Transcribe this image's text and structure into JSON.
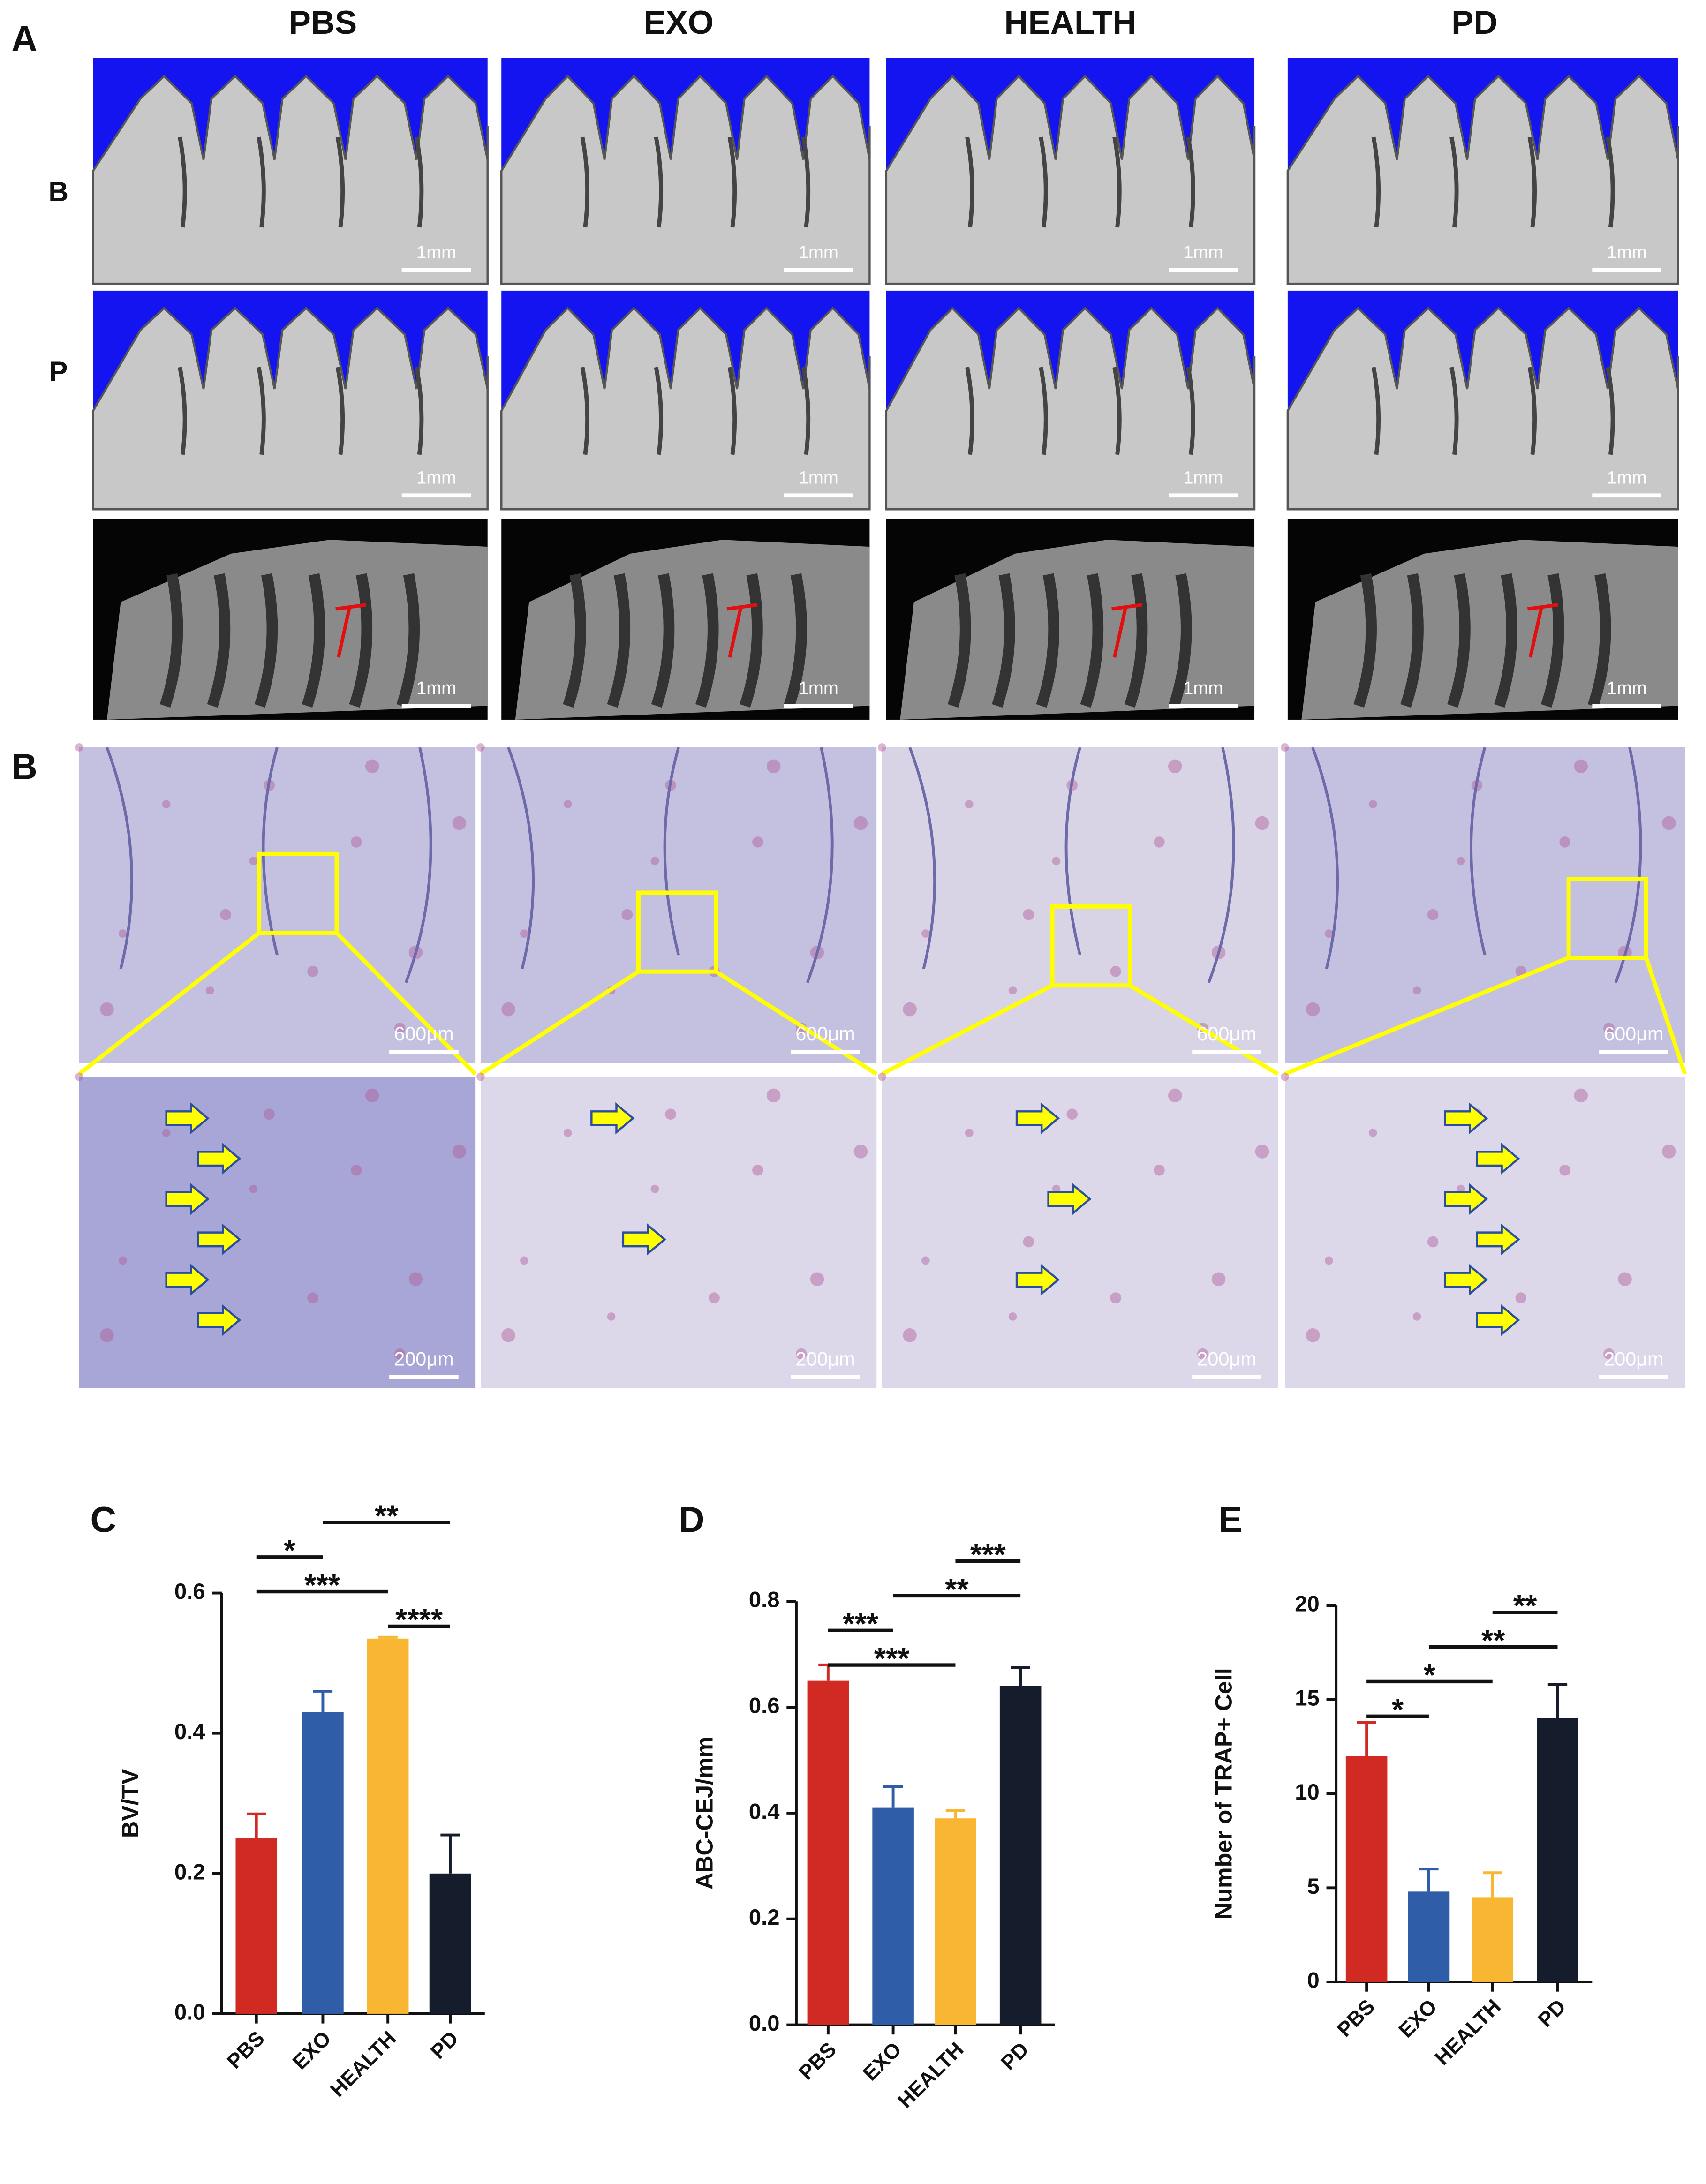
{
  "figure": {
    "panel_a": {
      "label": "A",
      "columns": [
        "PBS",
        "EXO",
        "HEALTH",
        "PD"
      ],
      "row_labels": [
        "B",
        "P"
      ],
      "scale_bars": [
        [
          "1mm",
          "1mm",
          "1mm",
          "1mm"
        ],
        [
          "1mm",
          "1mm",
          "1mm",
          "1mm"
        ],
        [
          "1mm",
          "1mm",
          "1mm",
          "1mm"
        ]
      ]
    },
    "panel_b": {
      "label": "B",
      "scale_bars": [
        [
          "600μm",
          "600μm",
          "600μm",
          "600μm"
        ],
        [
          "200μm",
          "200μm",
          "200μm",
          "200μm"
        ]
      ]
    }
  },
  "chart_data": [
    {
      "type": "bar",
      "panel_label": "C",
      "y_label": "BV/TV",
      "categories": [
        "PBS",
        "EXO",
        "HEALTH",
        "PD"
      ],
      "values": [
        0.25,
        0.43,
        0.535,
        0.2
      ],
      "errors": [
        0.035,
        0.03,
        0.002,
        0.055
      ],
      "colors": [
        "#d12a22",
        "#2f5da8",
        "#f8b632",
        "#151c2b"
      ],
      "ylim": [
        0,
        0.6
      ],
      "yticks": [
        {
          "value": 0,
          "label": "0.0"
        },
        0.2,
        0.4,
        0.6
      ],
      "comparisons": [
        {
          "between": [
            1,
            3
          ],
          "label": "**"
        },
        {
          "between": [
            0,
            1
          ],
          "label": "*"
        },
        {
          "between": [
            0,
            2
          ],
          "label": "***"
        },
        {
          "between": [
            2,
            3
          ],
          "label": "****"
        }
      ]
    },
    {
      "type": "bar",
      "panel_label": "D",
      "y_label": "ABC-CEJ/mm",
      "categories": [
        "PBS",
        "EXO",
        "HEALTH",
        "PD"
      ],
      "values": [
        0.65,
        0.41,
        0.39,
        0.64
      ],
      "errors": [
        0.03,
        0.04,
        0.015,
        0.035
      ],
      "colors": [
        "#d12a22",
        "#2f5da8",
        "#f8b632",
        "#151c2b"
      ],
      "ylim": [
        0,
        0.8
      ],
      "yticks": [
        {
          "value": 0,
          "label": "0.0"
        },
        0.2,
        0.4,
        0.6,
        0.8
      ],
      "comparisons": [
        {
          "between": [
            2,
            3
          ],
          "label": "***"
        },
        {
          "between": [
            1,
            3
          ],
          "label": "**"
        },
        {
          "between": [
            0,
            1
          ],
          "label": "***"
        },
        {
          "between": [
            0,
            2
          ],
          "label": "***"
        }
      ]
    },
    {
      "type": "bar",
      "panel_label": "E",
      "y_label": "Number of TRAP+ Cell",
      "categories": [
        "PBS",
        "EXO",
        "HEALTH",
        "PD"
      ],
      "values": [
        12,
        4.8,
        4.5,
        14
      ],
      "errors": [
        1.8,
        1.2,
        1.3,
        1.8
      ],
      "colors": [
        "#d12a22",
        "#2f5da8",
        "#f8b632",
        "#151c2b"
      ],
      "ylim": [
        0,
        20
      ],
      "yticks": [
        0,
        5,
        10,
        15,
        20
      ],
      "comparisons": [
        {
          "between": [
            2,
            3
          ],
          "label": "**"
        },
        {
          "between": [
            1,
            3
          ],
          "label": "**"
        },
        {
          "between": [
            0,
            2
          ],
          "label": "*"
        },
        {
          "between": [
            0,
            1
          ],
          "label": "*"
        }
      ]
    }
  ]
}
